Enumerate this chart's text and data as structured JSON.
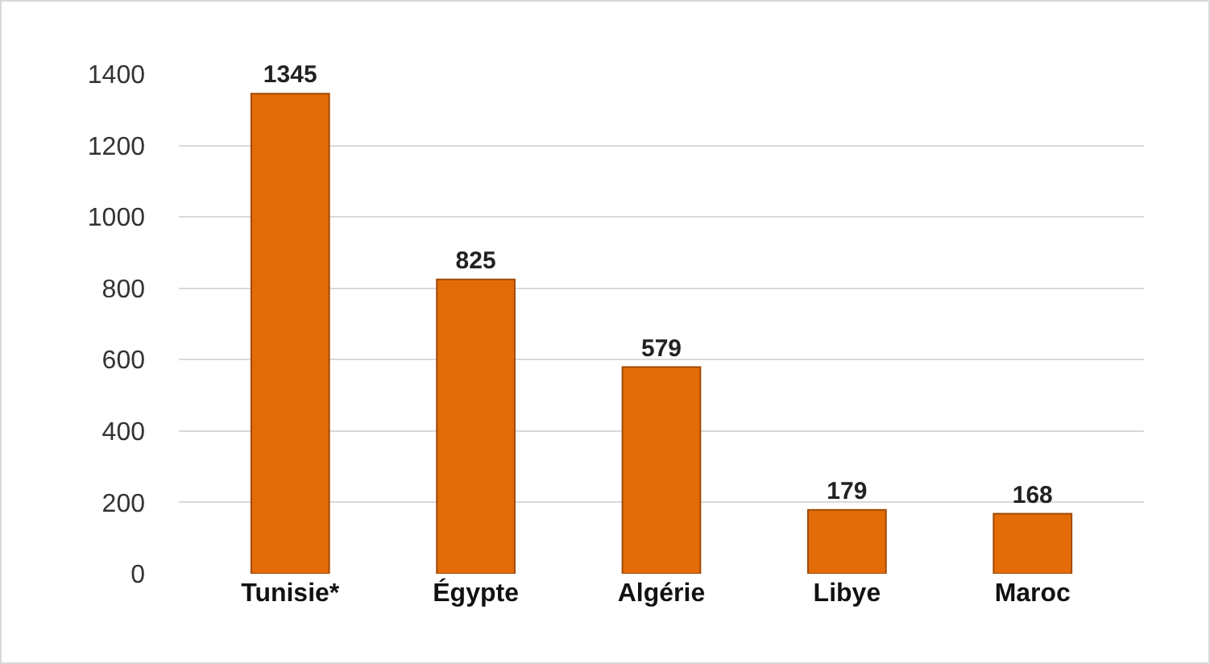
{
  "chart_data": {
    "type": "bar",
    "categories": [
      "Tunisie*",
      "Égypte",
      "Algérie",
      "Libye",
      "Maroc"
    ],
    "values": [
      1345,
      825,
      579,
      179,
      168
    ],
    "color": "#e36c09",
    "ylim": [
      0,
      1400
    ],
    "yticks": [
      0,
      200,
      400,
      600,
      800,
      1000,
      1200,
      1400
    ],
    "grid": "y",
    "data_labels": true
  }
}
